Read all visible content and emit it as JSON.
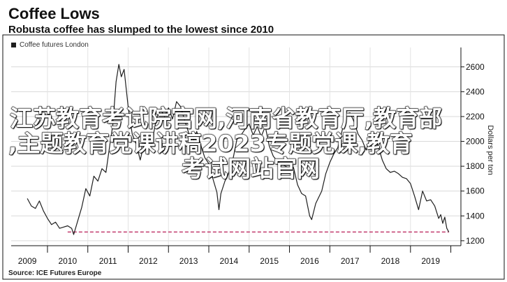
{
  "chart_data": {
    "type": "line",
    "title": "Coffee Lows",
    "subtitle": "Robusta coffee has slumped to the lowest since 2010",
    "ylabel": "Dollars per ton",
    "series": [
      {
        "name": "Coffee futures London",
        "color": "#1f1f1f",
        "points": [
          [
            2009.0,
            1540
          ],
          [
            2009.1,
            1480
          ],
          [
            2009.2,
            1460
          ],
          [
            2009.3,
            1520
          ],
          [
            2009.4,
            1440
          ],
          [
            2009.5,
            1380
          ],
          [
            2009.6,
            1330
          ],
          [
            2009.7,
            1350
          ],
          [
            2009.8,
            1300
          ],
          [
            2009.9,
            1310
          ],
          [
            2010.0,
            1320
          ],
          [
            2010.1,
            1300
          ],
          [
            2010.15,
            1250
          ],
          [
            2010.25,
            1360
          ],
          [
            2010.35,
            1470
          ],
          [
            2010.45,
            1620
          ],
          [
            2010.55,
            1560
          ],
          [
            2010.65,
            1720
          ],
          [
            2010.75,
            1680
          ],
          [
            2010.85,
            1780
          ],
          [
            2010.95,
            1750
          ],
          [
            2011.05,
            1980
          ],
          [
            2011.12,
            2130
          ],
          [
            2011.2,
            2480
          ],
          [
            2011.27,
            2620
          ],
          [
            2011.33,
            2520
          ],
          [
            2011.4,
            2580
          ],
          [
            2011.5,
            2280
          ],
          [
            2011.6,
            2060
          ],
          [
            2011.7,
            1980
          ],
          [
            2011.8,
            1850
          ],
          [
            2011.9,
            1990
          ],
          [
            2012.0,
            1930
          ],
          [
            2012.1,
            2010
          ],
          [
            2012.2,
            2180
          ],
          [
            2012.3,
            2260
          ],
          [
            2012.4,
            2200
          ],
          [
            2012.5,
            2270
          ],
          [
            2012.6,
            2180
          ],
          [
            2012.7,
            2320
          ],
          [
            2012.8,
            2280
          ],
          [
            2012.9,
            2170
          ],
          [
            2013.0,
            2070
          ],
          [
            2013.1,
            1990
          ],
          [
            2013.2,
            2080
          ],
          [
            2013.3,
            1970
          ],
          [
            2013.4,
            1870
          ],
          [
            2013.5,
            1820
          ],
          [
            2013.6,
            1700
          ],
          [
            2013.7,
            1590
          ],
          [
            2013.75,
            1450
          ],
          [
            2013.8,
            1580
          ],
          [
            2013.9,
            1680
          ],
          [
            2014.0,
            1750
          ],
          [
            2014.1,
            1860
          ],
          [
            2014.2,
            2020
          ],
          [
            2014.3,
            2050
          ],
          [
            2014.4,
            2100
          ],
          [
            2014.5,
            2140
          ],
          [
            2014.6,
            2050
          ],
          [
            2014.7,
            2120
          ],
          [
            2014.8,
            2040
          ],
          [
            2014.9,
            2120
          ],
          [
            2015.0,
            1960
          ],
          [
            2015.1,
            1880
          ],
          [
            2015.2,
            1840
          ],
          [
            2015.3,
            1820
          ],
          [
            2015.4,
            1800
          ],
          [
            2015.5,
            1780
          ],
          [
            2015.6,
            1790
          ],
          [
            2015.7,
            1650
          ],
          [
            2015.8,
            1580
          ],
          [
            2015.9,
            1560
          ],
          [
            2016.0,
            1400
          ],
          [
            2016.05,
            1370
          ],
          [
            2016.15,
            1500
          ],
          [
            2016.3,
            1600
          ],
          [
            2016.4,
            1740
          ],
          [
            2016.5,
            1830
          ],
          [
            2016.6,
            1900
          ],
          [
            2016.7,
            1950
          ],
          [
            2016.8,
            2080
          ],
          [
            2016.9,
            2220
          ],
          [
            2017.0,
            2230
          ],
          [
            2017.1,
            2160
          ],
          [
            2017.2,
            2060
          ],
          [
            2017.3,
            2010
          ],
          [
            2017.4,
            1930
          ],
          [
            2017.5,
            2020
          ],
          [
            2017.6,
            2060
          ],
          [
            2017.7,
            1960
          ],
          [
            2017.8,
            1850
          ],
          [
            2017.9,
            1780
          ],
          [
            2018.0,
            1750
          ],
          [
            2018.1,
            1760
          ],
          [
            2018.2,
            1740
          ],
          [
            2018.3,
            1710
          ],
          [
            2018.4,
            1700
          ],
          [
            2018.5,
            1660
          ],
          [
            2018.6,
            1560
          ],
          [
            2018.7,
            1450
          ],
          [
            2018.8,
            1600
          ],
          [
            2018.9,
            1520
          ],
          [
            2019.0,
            1530
          ],
          [
            2019.1,
            1480
          ],
          [
            2019.2,
            1380
          ],
          [
            2019.25,
            1410
          ],
          [
            2019.3,
            1340
          ],
          [
            2019.35,
            1390
          ],
          [
            2019.4,
            1300
          ],
          [
            2019.45,
            1270
          ]
        ]
      }
    ],
    "reference_line": {
      "value": 1270,
      "from": 2010.0,
      "to": 2019.45,
      "color": "#c23b6e",
      "style": "dashed"
    },
    "xlim": [
      2008.6,
      2019.75
    ],
    "ylim": [
      1160,
      2700
    ],
    "x_ticks": [
      2009,
      2010,
      2011,
      2012,
      2013,
      2014,
      2015,
      2016,
      2017,
      2018,
      2019
    ],
    "y_ticks": [
      1200,
      1400,
      1600,
      1800,
      2000,
      2200,
      2400,
      2600
    ],
    "grid": true,
    "legend": "top-left"
  },
  "legend": {
    "label": "Coffee futures London",
    "color": "#1f1f1f"
  },
  "source": "Source: ICE Futures Europe",
  "overlay": {
    "line1": "江苏教育考试院官网,河南省教育厅,教育部",
    "line2": ",主题教育党课讲稿2023专题党课,教育",
    "line3": "考试网站官网"
  }
}
